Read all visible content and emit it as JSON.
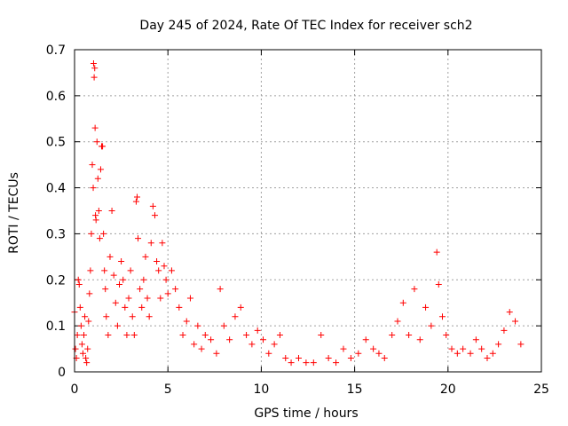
{
  "chart_data": {
    "type": "scatter",
    "title": "Day 245 of 2024, Rate Of TEC Index for receiver sch2",
    "xlabel": "GPS time / hours",
    "ylabel": "ROTI / TECUs",
    "xlim": [
      0,
      25
    ],
    "ylim": [
      0,
      0.7
    ],
    "xticks": [
      0,
      5,
      10,
      15,
      20,
      25
    ],
    "yticks": [
      0,
      0.1,
      0.2,
      0.3,
      0.4,
      0.5,
      0.6,
      0.7
    ],
    "xtick_labels": [
      "0",
      "5",
      "10",
      "15",
      "20",
      "25"
    ],
    "ytick_labels": [
      "0",
      "0.1",
      "0.2",
      "0.3",
      "0.4",
      "0.5",
      "0.6",
      "0.7"
    ],
    "grid": true,
    "marker": "+",
    "color": "#ff0000",
    "series": [
      {
        "name": "ROTI",
        "points": [
          [
            0.0,
            0.13
          ],
          [
            0.05,
            0.05
          ],
          [
            0.1,
            0.03
          ],
          [
            0.15,
            0.08
          ],
          [
            0.2,
            0.2
          ],
          [
            0.25,
            0.19
          ],
          [
            0.3,
            0.14
          ],
          [
            0.35,
            0.1
          ],
          [
            0.4,
            0.06
          ],
          [
            0.45,
            0.04
          ],
          [
            0.5,
            0.08
          ],
          [
            0.55,
            0.12
          ],
          [
            0.6,
            0.03
          ],
          [
            0.65,
            0.02
          ],
          [
            0.7,
            0.05
          ],
          [
            0.75,
            0.11
          ],
          [
            0.8,
            0.17
          ],
          [
            0.85,
            0.22
          ],
          [
            0.9,
            0.3
          ],
          [
            0.95,
            0.45
          ],
          [
            1.0,
            0.4
          ],
          [
            1.02,
            0.67
          ],
          [
            1.05,
            0.64
          ],
          [
            1.08,
            0.66
          ],
          [
            1.1,
            0.53
          ],
          [
            1.12,
            0.34
          ],
          [
            1.15,
            0.33
          ],
          [
            1.2,
            0.5
          ],
          [
            1.25,
            0.42
          ],
          [
            1.3,
            0.35
          ],
          [
            1.35,
            0.29
          ],
          [
            1.4,
            0.44
          ],
          [
            1.45,
            0.49
          ],
          [
            1.5,
            0.49
          ],
          [
            1.55,
            0.3
          ],
          [
            1.6,
            0.22
          ],
          [
            1.65,
            0.18
          ],
          [
            1.7,
            0.12
          ],
          [
            1.8,
            0.08
          ],
          [
            1.9,
            0.25
          ],
          [
            2.0,
            0.35
          ],
          [
            2.1,
            0.21
          ],
          [
            2.2,
            0.15
          ],
          [
            2.3,
            0.1
          ],
          [
            2.4,
            0.19
          ],
          [
            2.5,
            0.24
          ],
          [
            2.6,
            0.2
          ],
          [
            2.7,
            0.14
          ],
          [
            2.8,
            0.08
          ],
          [
            2.9,
            0.16
          ],
          [
            3.0,
            0.22
          ],
          [
            3.1,
            0.12
          ],
          [
            3.2,
            0.08
          ],
          [
            3.3,
            0.37
          ],
          [
            3.35,
            0.38
          ],
          [
            3.4,
            0.29
          ],
          [
            3.5,
            0.18
          ],
          [
            3.6,
            0.14
          ],
          [
            3.7,
            0.2
          ],
          [
            3.8,
            0.25
          ],
          [
            3.9,
            0.16
          ],
          [
            4.0,
            0.12
          ],
          [
            4.1,
            0.28
          ],
          [
            4.2,
            0.36
          ],
          [
            4.3,
            0.34
          ],
          [
            4.4,
            0.24
          ],
          [
            4.5,
            0.22
          ],
          [
            4.6,
            0.16
          ],
          [
            4.7,
            0.28
          ],
          [
            4.8,
            0.23
          ],
          [
            4.9,
            0.2
          ],
          [
            5.0,
            0.17
          ],
          [
            5.2,
            0.22
          ],
          [
            5.4,
            0.18
          ],
          [
            5.6,
            0.14
          ],
          [
            5.8,
            0.08
          ],
          [
            6.0,
            0.11
          ],
          [
            6.2,
            0.16
          ],
          [
            6.4,
            0.06
          ],
          [
            6.6,
            0.1
          ],
          [
            6.8,
            0.05
          ],
          [
            7.0,
            0.08
          ],
          [
            7.3,
            0.07
          ],
          [
            7.6,
            0.04
          ],
          [
            7.8,
            0.18
          ],
          [
            8.0,
            0.1
          ],
          [
            8.3,
            0.07
          ],
          [
            8.6,
            0.12
          ],
          [
            8.9,
            0.14
          ],
          [
            9.2,
            0.08
          ],
          [
            9.5,
            0.06
          ],
          [
            9.8,
            0.09
          ],
          [
            10.1,
            0.07
          ],
          [
            10.4,
            0.04
          ],
          [
            10.7,
            0.06
          ],
          [
            11.0,
            0.08
          ],
          [
            11.3,
            0.03
          ],
          [
            11.6,
            0.02
          ],
          [
            12.0,
            0.03
          ],
          [
            12.4,
            0.02
          ],
          [
            12.8,
            0.02
          ],
          [
            13.2,
            0.08
          ],
          [
            13.6,
            0.03
          ],
          [
            14.0,
            0.02
          ],
          [
            14.4,
            0.05
          ],
          [
            14.8,
            0.03
          ],
          [
            15.2,
            0.04
          ],
          [
            15.6,
            0.07
          ],
          [
            16.0,
            0.05
          ],
          [
            16.3,
            0.04
          ],
          [
            16.6,
            0.03
          ],
          [
            17.0,
            0.08
          ],
          [
            17.3,
            0.11
          ],
          [
            17.6,
            0.15
          ],
          [
            17.9,
            0.08
          ],
          [
            18.2,
            0.18
          ],
          [
            18.5,
            0.07
          ],
          [
            18.8,
            0.14
          ],
          [
            19.1,
            0.1
          ],
          [
            19.4,
            0.26
          ],
          [
            19.5,
            0.19
          ],
          [
            19.7,
            0.12
          ],
          [
            19.9,
            0.08
          ],
          [
            20.2,
            0.05
          ],
          [
            20.5,
            0.04
          ],
          [
            20.8,
            0.05
          ],
          [
            21.2,
            0.04
          ],
          [
            21.5,
            0.07
          ],
          [
            21.8,
            0.05
          ],
          [
            22.1,
            0.03
          ],
          [
            22.4,
            0.04
          ],
          [
            22.7,
            0.06
          ],
          [
            23.0,
            0.09
          ],
          [
            23.3,
            0.13
          ],
          [
            23.6,
            0.11
          ],
          [
            23.9,
            0.06
          ]
        ]
      }
    ]
  }
}
